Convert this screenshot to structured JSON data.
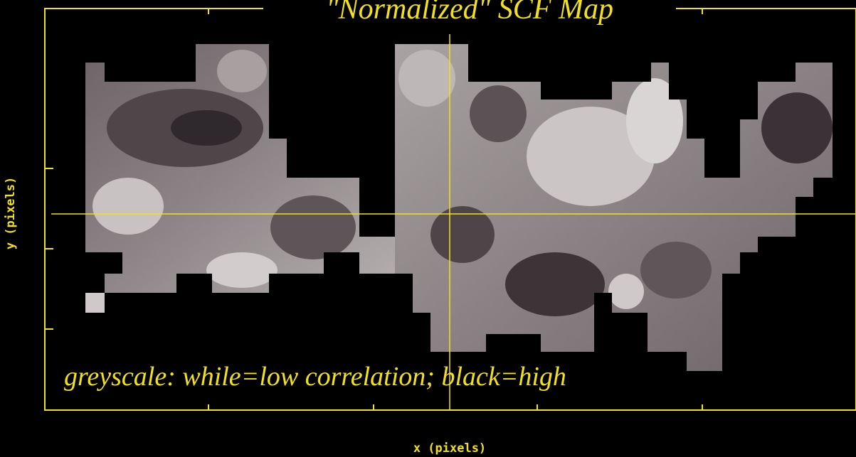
{
  "title": "\"Normalized\" SCF Map",
  "annotation": "greyscale: while=low correlation; black=high",
  "x_label": "x (pixels)",
  "y_label": "y (pixels)"
}
